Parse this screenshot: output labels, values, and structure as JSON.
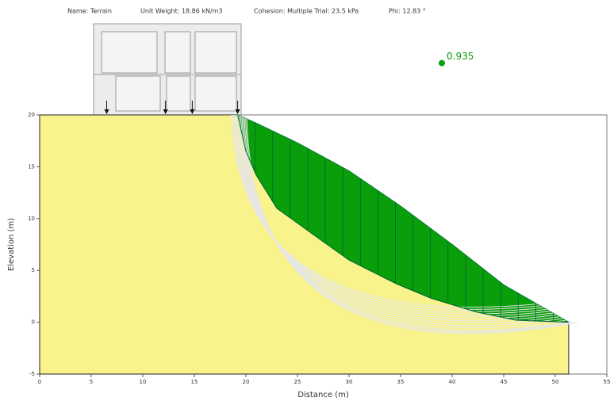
{
  "chart_data": {
    "type": "slope",
    "header": [
      "Name: Terrain",
      "Unit Weight: 18.86 kN/m3",
      "Cohesion: Multiple Trial: 23.5 kPa",
      "Phi: 12.83 °"
    ],
    "x_label": "Distance (m)",
    "y_label": "Elevation (m)",
    "xlim": [
      0,
      55
    ],
    "ylim": [
      -5,
      20
    ],
    "xticks": [
      0,
      5,
      10,
      15,
      20,
      25,
      30,
      35,
      40,
      45,
      50,
      55
    ],
    "yticks": [
      -5,
      0,
      5,
      10,
      15,
      20
    ],
    "ground": {
      "x": [
        0,
        19.2,
        21,
        25,
        30,
        35,
        40,
        45,
        48.5,
        51.3,
        51.3,
        0
      ],
      "y": [
        20,
        20,
        19.2,
        17.3,
        14.6,
        11.2,
        7.5,
        3.6,
        1.6,
        0,
        -5,
        -5
      ]
    },
    "slip_surface": {
      "x": [
        19.2,
        20,
        21,
        23,
        26.9,
        30,
        34.6,
        38,
        42.3,
        46.2,
        51.3
      ],
      "y": [
        20,
        16.5,
        14.2,
        11,
        8.2,
        6,
        3.7,
        2.3,
        1,
        0.2,
        0
      ]
    },
    "loads_x": [
      6.5,
      12.2,
      14.8,
      19.2
    ],
    "slip_center": {
      "x": 39,
      "y": 25
    },
    "factor_of_safety": 0.935,
    "soil_color": "#f9f38c",
    "slide_color": "#0a9e0a"
  }
}
